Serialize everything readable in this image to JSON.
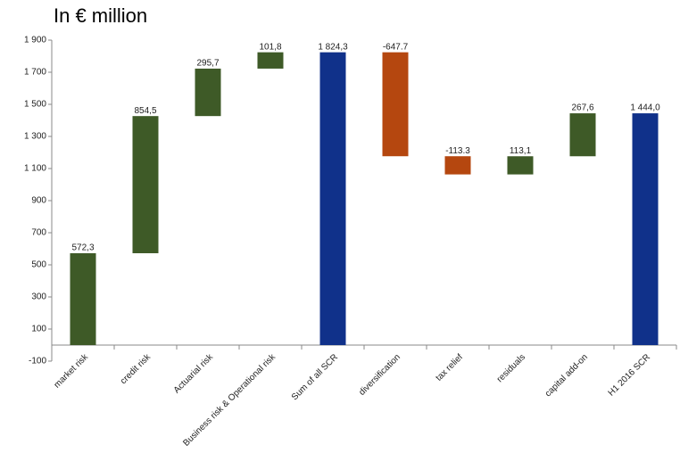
{
  "chart_data": {
    "type": "waterfall",
    "title": "In € million",
    "categories": [
      "market risk",
      "credit risk",
      "Actuarial risk",
      "Business risk & Operational risk",
      "Sum of all SCR",
      "diversification",
      "tax relief",
      "residuals",
      "capital add-on",
      "H1 2016 SCR"
    ],
    "values": [
      572.3,
      854.5,
      295.7,
      101.8,
      1824.3,
      -647.7,
      -113.3,
      113.1,
      267.6,
      1444.0
    ],
    "value_labels": [
      "572,3",
      "854,5",
      "295,7",
      "101,8",
      "1 824,3",
      "-647.7",
      "-113.3",
      "113,1",
      "267,6",
      "1 444,0"
    ],
    "totals": [
      "Sum of all SCR",
      "H1 2016 SCR"
    ],
    "increase_color": "#3e5a27",
    "decrease_color": "#b5470f",
    "total_color": "#10318a",
    "ylim": [
      -100,
      1900
    ],
    "yticks": [
      -100,
      100,
      300,
      500,
      700,
      900,
      {
        "value": 1100,
        "label": "1 100"
      },
      {
        "value": 1300,
        "label": "1 300"
      },
      {
        "value": 1500,
        "label": "1 500"
      },
      {
        "value": 1700,
        "label": "1 700"
      },
      {
        "value": 1900,
        "label": "1 900"
      }
    ]
  }
}
